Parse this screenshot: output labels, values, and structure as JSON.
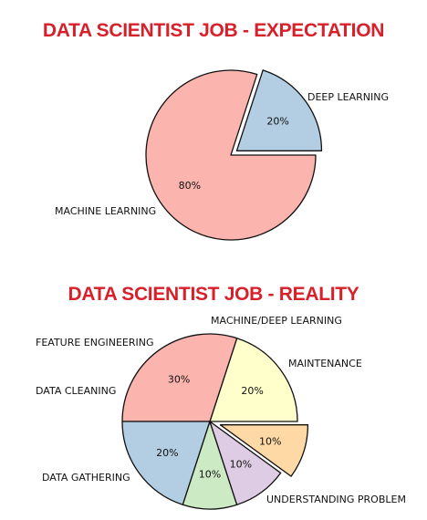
{
  "chart_data": [
    {
      "type": "pie",
      "title": "DATA SCIENTIST JOB - EXPECTATION",
      "slices": [
        {
          "label": "DEEP LEARNING",
          "value": 20,
          "value_label": "20%",
          "color": "#b3cde3",
          "exploded": true
        },
        {
          "label": "MACHINE LEARNING",
          "value": 80,
          "value_label": "80%",
          "color": "#fbb4ae",
          "exploded": false
        }
      ]
    },
    {
      "type": "pie",
      "title": "DATA SCIENTIST JOB - REALITY",
      "slices": [
        {
          "label": "MAINTENANCE",
          "value": 20,
          "value_label": "20%",
          "color": "#ffffcc",
          "exploded": false
        },
        {
          "label": "UNDERSTANDING PROBLEM",
          "value": 30,
          "value_label": "30%",
          "color": "#fbb4ae",
          "exploded": false
        },
        {
          "label": "DATA GATHERING",
          "value": 20,
          "value_label": "20%",
          "color": "#b3cde3",
          "exploded": false
        },
        {
          "label": "DATA CLEANING",
          "value": 10,
          "value_label": "10%",
          "color": "#ccebc5",
          "exploded": false
        },
        {
          "label": "FEATURE ENGINEERING",
          "value": 10,
          "value_label": "10%",
          "color": "#decbe4",
          "exploded": false
        },
        {
          "label": "MACHINE/DEEP LEARNING",
          "value": 10,
          "value_label": "10%",
          "color": "#fed9a6",
          "exploded": true
        }
      ]
    }
  ]
}
